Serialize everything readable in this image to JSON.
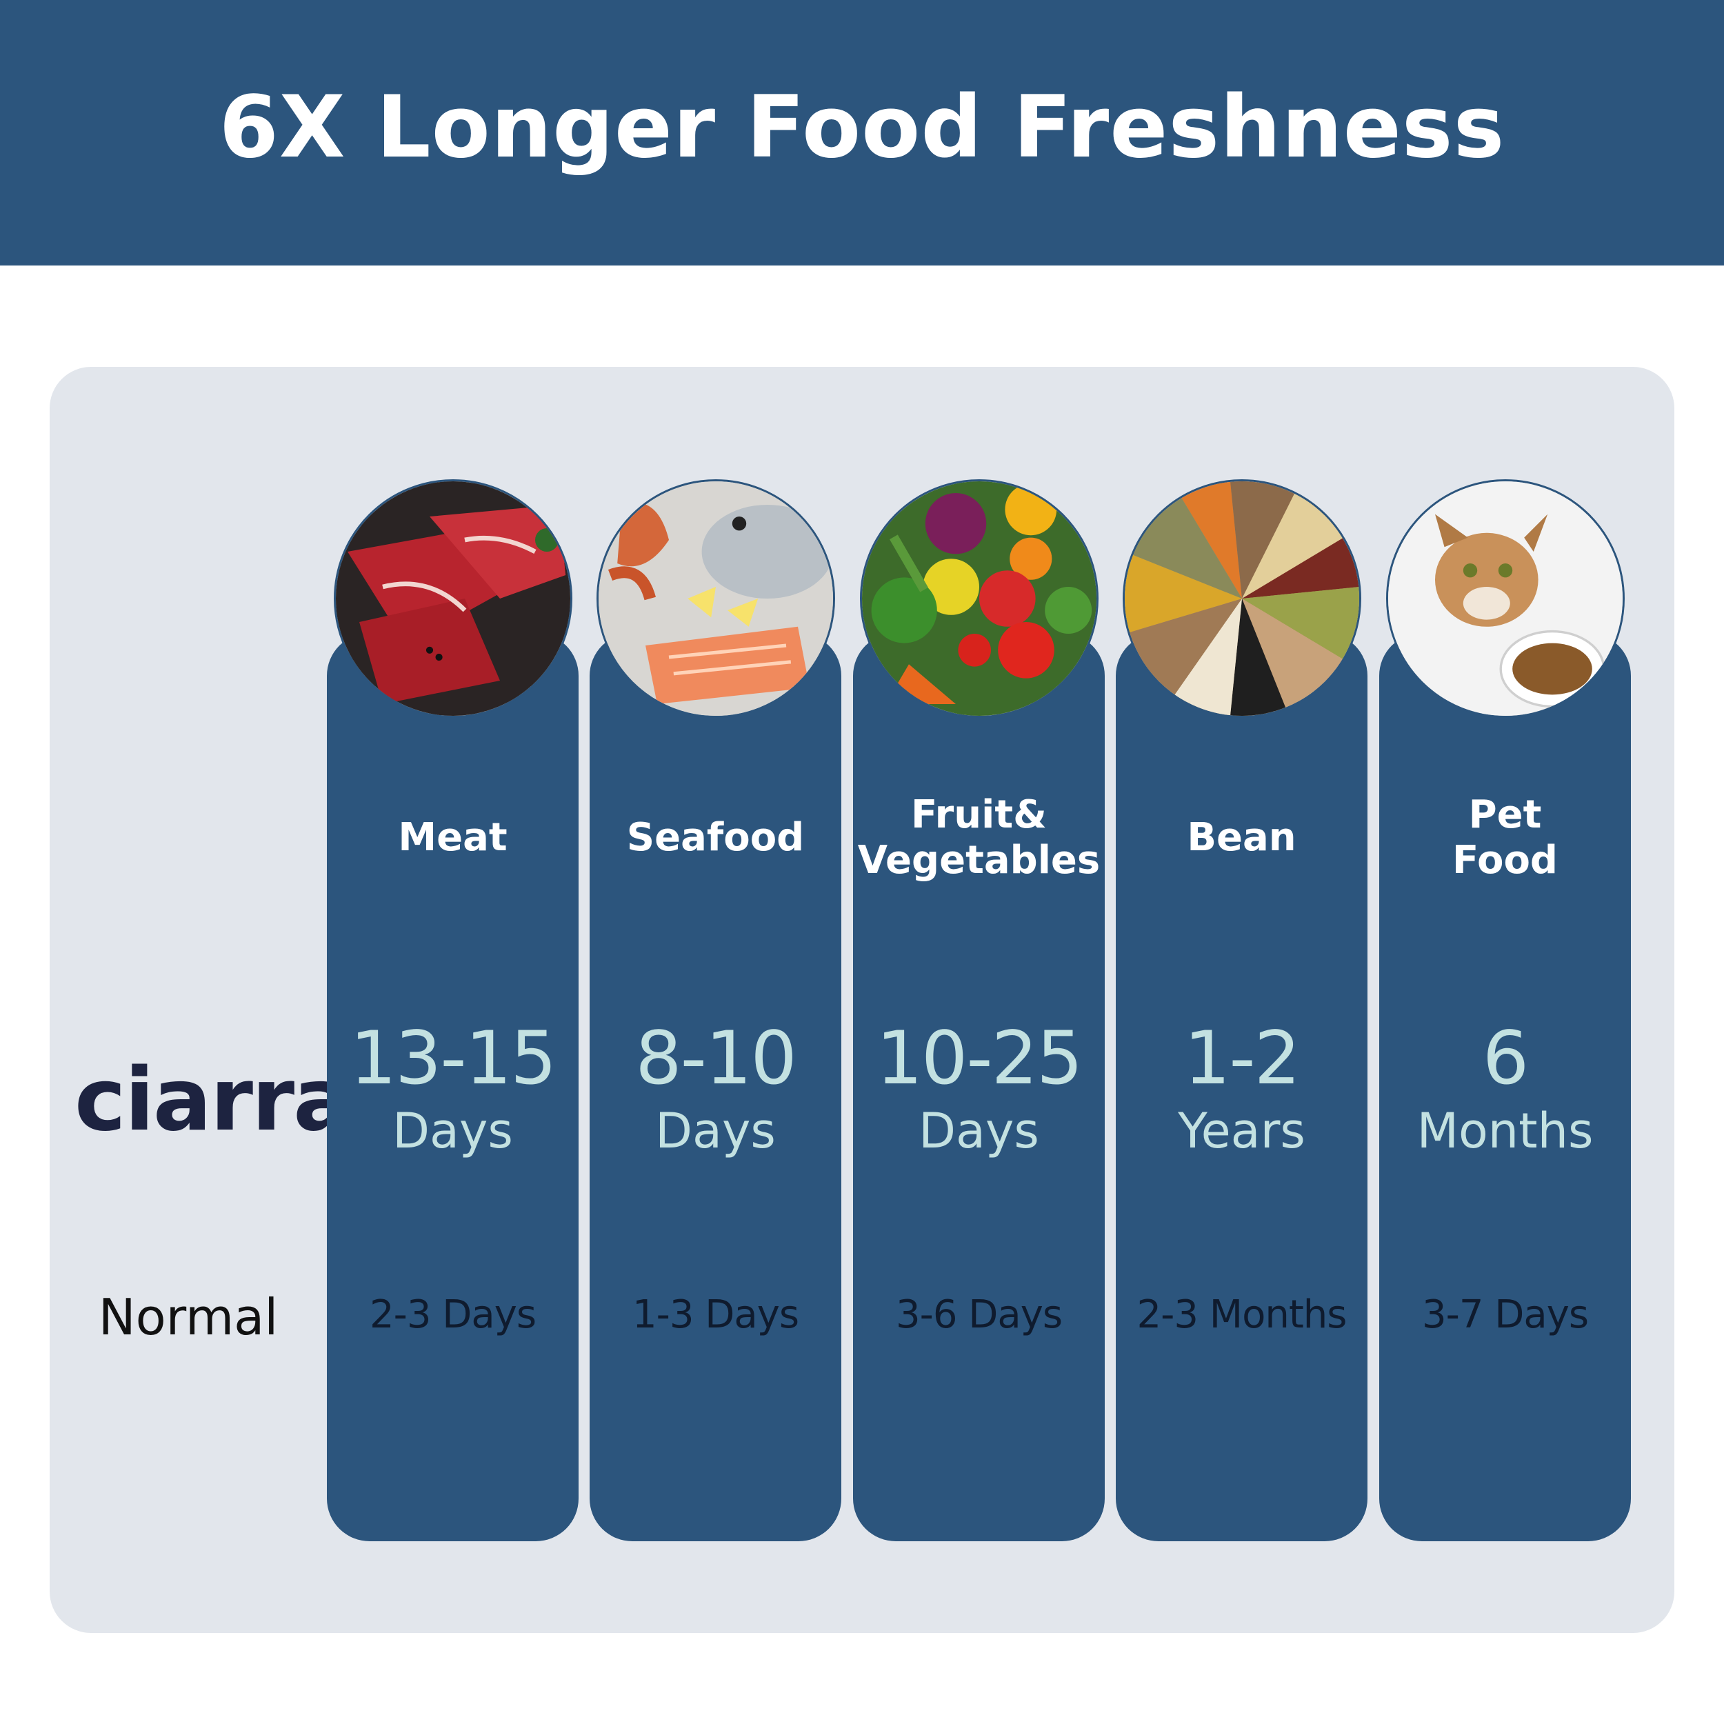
{
  "title": "6X Longer Food Freshness",
  "brand": "ciarra",
  "normal_label": "Normal",
  "colors": {
    "header": "#2c557d",
    "panel": "#e2e6ec",
    "column": "#2c557d",
    "highlight": "#c3e1e1"
  },
  "columns": [
    {
      "name": "Meat",
      "name_line2": "",
      "value": "13-15",
      "unit": "Days",
      "normal": "2-3 Days",
      "image": "meat-image"
    },
    {
      "name": "Seafood",
      "name_line2": "",
      "value": "8-10",
      "unit": "Days",
      "normal": "1-3 Days",
      "image": "seafood-image"
    },
    {
      "name": "Fruit&",
      "name_line2": "Vegetables",
      "value": "10-25",
      "unit": "Days",
      "normal": "3-6 Days",
      "image": "fruit-vegetables-image"
    },
    {
      "name": "Bean",
      "name_line2": "",
      "value": "1-2",
      "unit": "Years",
      "normal": "2-3 Months",
      "image": "bean-image"
    },
    {
      "name": "Pet",
      "name_line2": "Food",
      "value": "6",
      "unit": "Months",
      "normal": "3-7 Days",
      "image": "pet-food-image"
    }
  ]
}
